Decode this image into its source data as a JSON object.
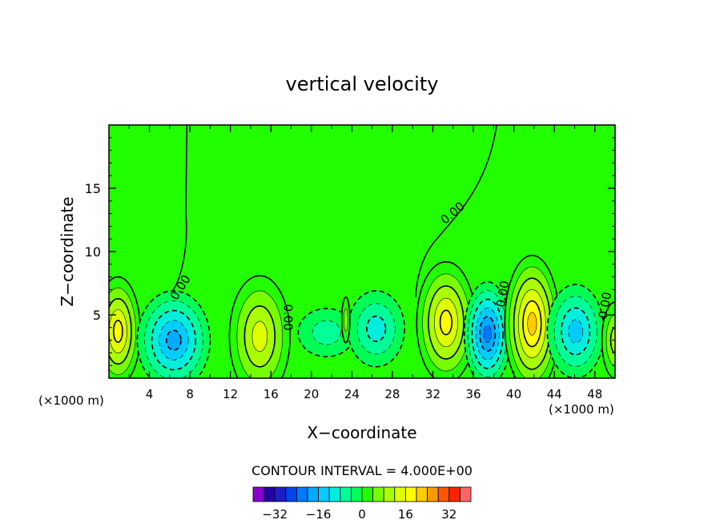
{
  "chart_data": {
    "type": "contour",
    "title": "vertical velocity",
    "xlabel": "X−coordinate",
    "ylabel": "Z−coordinate",
    "x_unit_left": "(×1000 m)",
    "x_unit_right": "(×1000 m)",
    "xlim": [
      0,
      50
    ],
    "ylim": [
      0,
      20
    ],
    "x_ticks": [
      4,
      8,
      12,
      16,
      20,
      24,
      28,
      32,
      36,
      40,
      44,
      48
    ],
    "y_ticks": [
      5,
      10,
      15
    ],
    "x_tick_labels": [
      "4",
      "8",
      "12",
      "16",
      "20",
      "24",
      "28",
      "32",
      "36",
      "40",
      "44",
      "48"
    ],
    "y_tick_labels": [
      "5",
      "10",
      "15"
    ],
    "contour_interval_text": "CONTOUR INTERVAL = 4.000E+00",
    "contour_labels": [
      {
        "text": "0.00",
        "x": 7.4,
        "z": 7.0,
        "rotate": -58
      },
      {
        "text": "0.00",
        "x": 17.3,
        "z": 4.8,
        "rotate": 90
      },
      {
        "text": "0.00",
        "x": 34.2,
        "z": 12.8,
        "rotate": -40
      },
      {
        "text": "0.00",
        "x": 39.3,
        "z": 6.6,
        "rotate": -80
      },
      {
        "text": "0.00",
        "x": 49.4,
        "z": 5.7,
        "rotate": -80
      }
    ],
    "cells": [
      {
        "x": 0.9,
        "z": 3.7,
        "rx": 2.2,
        "rz": 4.3,
        "peak": 18
      },
      {
        "x": 6.4,
        "z": 3.0,
        "rx": 3.6,
        "rz": 3.9,
        "peak": -19
      },
      {
        "x": 14.9,
        "z": 3.3,
        "rx": 3.0,
        "rz": 4.8,
        "peak": 13
      },
      {
        "x": 21.5,
        "z": 3.6,
        "rx": 2.8,
        "rz": 1.9,
        "peak": -5
      },
      {
        "x": 26.4,
        "z": 3.9,
        "rx": 2.8,
        "rz": 3.0,
        "peak": -10
      },
      {
        "x": 23.4,
        "z": 4.6,
        "rx": 0.4,
        "rz": 1.8,
        "peak": 6
      },
      {
        "x": 33.3,
        "z": 4.4,
        "rx": 2.9,
        "rz": 4.8,
        "peak": 19
      },
      {
        "x": 37.4,
        "z": 3.5,
        "rx": 2.3,
        "rz": 4.1,
        "peak": -21
      },
      {
        "x": 41.8,
        "z": 4.3,
        "rx": 2.7,
        "rz": 5.4,
        "peak": 21
      },
      {
        "x": 46.1,
        "z": 3.7,
        "rx": 2.8,
        "rz": 3.7,
        "peak": -14
      },
      {
        "x": 50.0,
        "z": 3.0,
        "rx": 1.3,
        "rz": 3.0,
        "peak": 10
      }
    ],
    "colorbar": {
      "levels": [
        -40,
        -36,
        -32,
        -28,
        -24,
        -20,
        -16,
        -12,
        -8,
        -4,
        0,
        4,
        8,
        12,
        16,
        20,
        24,
        28,
        32,
        36,
        40
      ],
      "colors": [
        "#8800cc",
        "#2200aa",
        "#1e1ec8",
        "#0044ee",
        "#0078ff",
        "#00aaff",
        "#00ccff",
        "#00eedd",
        "#00ff99",
        "#00ff55",
        "#22ff00",
        "#77ff00",
        "#aaff00",
        "#ddff00",
        "#ffff00",
        "#ffcc00",
        "#ff9900",
        "#ff5500",
        "#ff2200",
        "#ff6666"
      ],
      "tick_values": [
        -32,
        -16,
        0,
        16,
        32
      ],
      "tick_labels": [
        "−32",
        "−16",
        "0",
        "16",
        "32"
      ]
    }
  }
}
